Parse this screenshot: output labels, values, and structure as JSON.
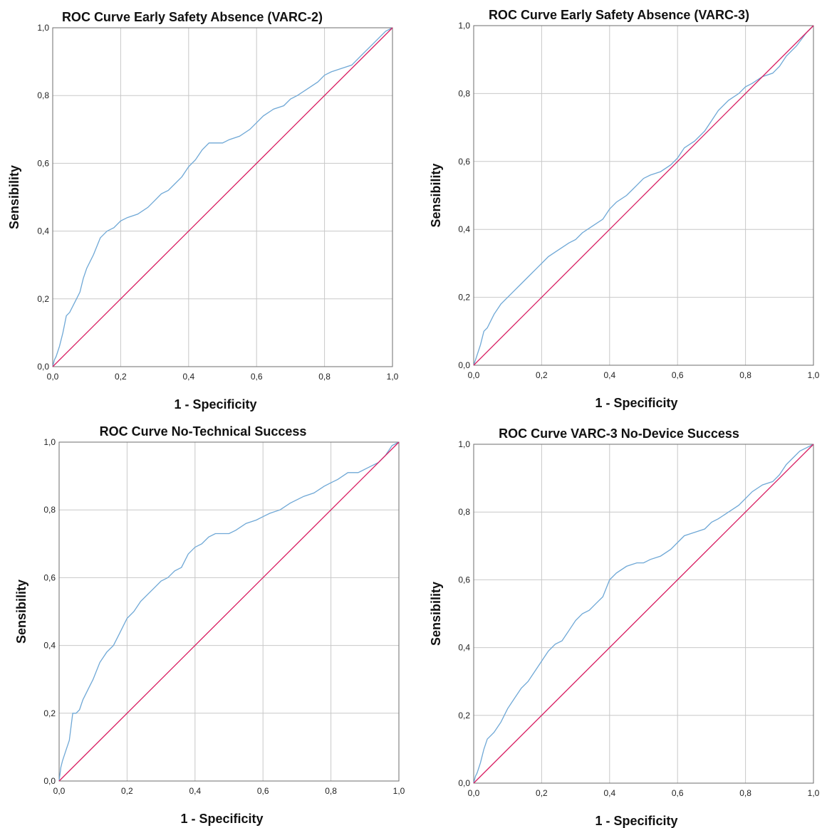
{
  "chart_data": [
    {
      "type": "line",
      "title": "ROC Curve Early Safety Absence (VARC-2)",
      "xlabel": "1 - Specificity",
      "ylabel": "Sensibility",
      "xlim": [
        0,
        1
      ],
      "ylim": [
        0,
        1
      ],
      "xticks": [
        "0,0",
        "0,2",
        "0,4",
        "0,6",
        "0,8",
        "1,0"
      ],
      "yticks": [
        "0,0",
        "0,2",
        "0,4",
        "0,6",
        "0,8",
        "1,0"
      ],
      "grid": true,
      "series": [
        {
          "role": "roc",
          "color": "#6fa8d6",
          "x": [
            0,
            0.005,
            0.01,
            0.02,
            0.03,
            0.04,
            0.05,
            0.06,
            0.07,
            0.08,
            0.09,
            0.1,
            0.12,
            0.14,
            0.16,
            0.18,
            0.2,
            0.22,
            0.25,
            0.28,
            0.3,
            0.32,
            0.34,
            0.36,
            0.38,
            0.4,
            0.42,
            0.44,
            0.46,
            0.48,
            0.5,
            0.52,
            0.55,
            0.58,
            0.6,
            0.62,
            0.65,
            0.68,
            0.7,
            0.72,
            0.75,
            0.78,
            0.8,
            0.82,
            0.85,
            0.88,
            0.9,
            0.92,
            0.94,
            0.96,
            0.98,
            1.0
          ],
          "y": [
            0,
            0.02,
            0.03,
            0.06,
            0.1,
            0.15,
            0.16,
            0.18,
            0.2,
            0.22,
            0.26,
            0.29,
            0.33,
            0.38,
            0.4,
            0.41,
            0.43,
            0.44,
            0.45,
            0.47,
            0.49,
            0.51,
            0.52,
            0.54,
            0.56,
            0.59,
            0.61,
            0.64,
            0.66,
            0.66,
            0.66,
            0.67,
            0.68,
            0.7,
            0.72,
            0.74,
            0.76,
            0.77,
            0.79,
            0.8,
            0.82,
            0.84,
            0.86,
            0.87,
            0.88,
            0.89,
            0.91,
            0.93,
            0.95,
            0.97,
            0.99,
            1.0
          ]
        },
        {
          "role": "reference",
          "color": "#d81b60",
          "x": [
            0,
            1
          ],
          "y": [
            0,
            1
          ]
        }
      ]
    },
    {
      "type": "line",
      "title": "ROC Curve Early Safety Absence (VARC-3)",
      "xlabel": "1 - Specificity",
      "ylabel": "Sensibility",
      "xlim": [
        0,
        1
      ],
      "ylim": [
        0,
        1
      ],
      "xticks": [
        "0,0",
        "0,2",
        "0,4",
        "0,6",
        "0,8",
        "1,0"
      ],
      "yticks": [
        "0,0",
        "0,2",
        "0,4",
        "0,6",
        "0,8",
        "1,0"
      ],
      "grid": true,
      "series": [
        {
          "role": "roc",
          "color": "#6fa8d6",
          "x": [
            0,
            0.01,
            0.02,
            0.03,
            0.04,
            0.06,
            0.08,
            0.1,
            0.12,
            0.14,
            0.16,
            0.18,
            0.2,
            0.22,
            0.25,
            0.28,
            0.3,
            0.32,
            0.35,
            0.38,
            0.4,
            0.42,
            0.45,
            0.48,
            0.5,
            0.52,
            0.55,
            0.58,
            0.6,
            0.62,
            0.65,
            0.68,
            0.7,
            0.72,
            0.75,
            0.78,
            0.8,
            0.82,
            0.85,
            0.88,
            0.9,
            0.92,
            0.95,
            0.98,
            1.0
          ],
          "y": [
            0,
            0.03,
            0.06,
            0.1,
            0.11,
            0.15,
            0.18,
            0.2,
            0.22,
            0.24,
            0.26,
            0.28,
            0.3,
            0.32,
            0.34,
            0.36,
            0.37,
            0.39,
            0.41,
            0.43,
            0.46,
            0.48,
            0.5,
            0.53,
            0.55,
            0.56,
            0.57,
            0.59,
            0.61,
            0.64,
            0.66,
            0.69,
            0.72,
            0.75,
            0.78,
            0.8,
            0.82,
            0.83,
            0.85,
            0.86,
            0.88,
            0.91,
            0.94,
            0.98,
            1.0
          ]
        },
        {
          "role": "reference",
          "color": "#d81b60",
          "x": [
            0,
            1
          ],
          "y": [
            0,
            1
          ]
        }
      ]
    },
    {
      "type": "line",
      "title": "ROC Curve No-Technical Success",
      "xlabel": "1 - Specificity",
      "ylabel": "Sensibility",
      "xlim": [
        0,
        1
      ],
      "ylim": [
        0,
        1
      ],
      "xticks": [
        "0,0",
        "0,2",
        "0,4",
        "0,6",
        "0,8",
        "1,0"
      ],
      "yticks": [
        "0,0",
        "0,2",
        "0,4",
        "0,6",
        "0,8",
        "1,0"
      ],
      "grid": true,
      "series": [
        {
          "role": "roc",
          "color": "#6fa8d6",
          "x": [
            0,
            0.005,
            0.01,
            0.02,
            0.03,
            0.04,
            0.05,
            0.06,
            0.07,
            0.08,
            0.09,
            0.1,
            0.12,
            0.14,
            0.16,
            0.18,
            0.2,
            0.22,
            0.24,
            0.26,
            0.28,
            0.3,
            0.32,
            0.34,
            0.36,
            0.38,
            0.4,
            0.42,
            0.44,
            0.46,
            0.48,
            0.5,
            0.52,
            0.55,
            0.58,
            0.6,
            0.62,
            0.65,
            0.68,
            0.7,
            0.72,
            0.75,
            0.78,
            0.8,
            0.82,
            0.85,
            0.88,
            0.9,
            0.92,
            0.94,
            0.96,
            0.98,
            1.0
          ],
          "y": [
            0,
            0.04,
            0.06,
            0.09,
            0.12,
            0.2,
            0.2,
            0.21,
            0.24,
            0.26,
            0.28,
            0.3,
            0.35,
            0.38,
            0.4,
            0.44,
            0.48,
            0.5,
            0.53,
            0.55,
            0.57,
            0.59,
            0.6,
            0.62,
            0.63,
            0.67,
            0.69,
            0.7,
            0.72,
            0.73,
            0.73,
            0.73,
            0.74,
            0.76,
            0.77,
            0.78,
            0.79,
            0.8,
            0.82,
            0.83,
            0.84,
            0.85,
            0.87,
            0.88,
            0.89,
            0.91,
            0.91,
            0.92,
            0.93,
            0.94,
            0.96,
            0.99,
            1.0
          ]
        },
        {
          "role": "reference",
          "color": "#d81b60",
          "x": [
            0,
            1
          ],
          "y": [
            0,
            1
          ]
        }
      ]
    },
    {
      "type": "line",
      "title": "ROC Curve VARC-3 No-Device Success",
      "xlabel": "1 - Specificity",
      "ylabel": "Sensibility",
      "xlim": [
        0,
        1
      ],
      "ylim": [
        0,
        1
      ],
      "xticks": [
        "0,0",
        "0,2",
        "0,4",
        "0,6",
        "0,8",
        "1,0"
      ],
      "yticks": [
        "0,0",
        "0,2",
        "0,4",
        "0,6",
        "0,8",
        "1,0"
      ],
      "grid": true,
      "series": [
        {
          "role": "roc",
          "color": "#6fa8d6",
          "x": [
            0,
            0.005,
            0.01,
            0.02,
            0.03,
            0.04,
            0.05,
            0.06,
            0.08,
            0.1,
            0.12,
            0.14,
            0.16,
            0.18,
            0.2,
            0.22,
            0.24,
            0.26,
            0.28,
            0.3,
            0.32,
            0.34,
            0.36,
            0.38,
            0.4,
            0.42,
            0.45,
            0.48,
            0.5,
            0.52,
            0.55,
            0.58,
            0.6,
            0.62,
            0.65,
            0.68,
            0.7,
            0.72,
            0.75,
            0.78,
            0.8,
            0.82,
            0.85,
            0.88,
            0.9,
            0.92,
            0.94,
            0.96,
            0.98,
            1.0
          ],
          "y": [
            0,
            0.02,
            0.03,
            0.06,
            0.1,
            0.13,
            0.14,
            0.15,
            0.18,
            0.22,
            0.25,
            0.28,
            0.3,
            0.33,
            0.36,
            0.39,
            0.41,
            0.42,
            0.45,
            0.48,
            0.5,
            0.51,
            0.53,
            0.55,
            0.6,
            0.62,
            0.64,
            0.65,
            0.65,
            0.66,
            0.67,
            0.69,
            0.71,
            0.73,
            0.74,
            0.75,
            0.77,
            0.78,
            0.8,
            0.82,
            0.84,
            0.86,
            0.88,
            0.89,
            0.91,
            0.94,
            0.96,
            0.98,
            0.99,
            1.0
          ]
        },
        {
          "role": "reference",
          "color": "#d81b60",
          "x": [
            0,
            1
          ],
          "y": [
            0,
            1
          ]
        }
      ]
    }
  ]
}
